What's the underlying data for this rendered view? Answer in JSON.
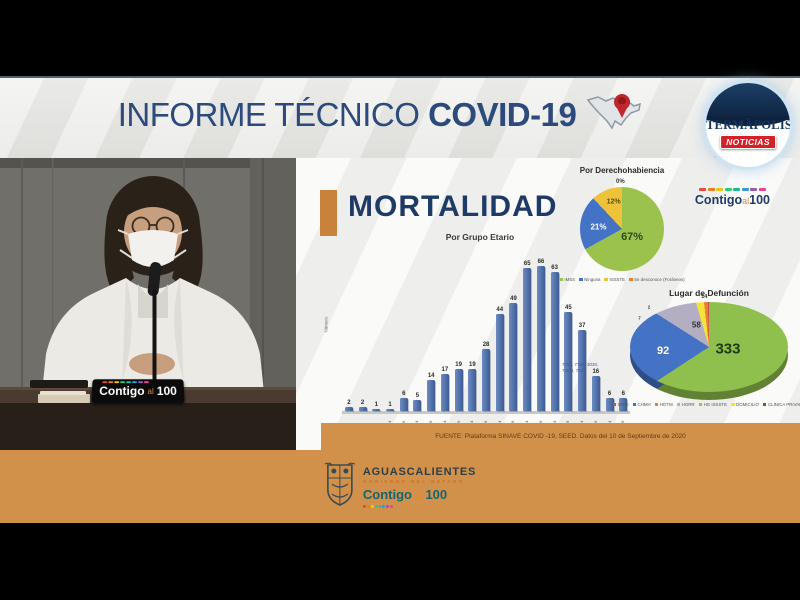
{
  "theme": {
    "accent_orange": "#d2914a",
    "navy": "#1e3a66",
    "bar_blue": "#4f6fa8",
    "badge_red": "#d42027"
  },
  "header": {
    "title_regular": "INFORME TÉCNICO ",
    "title_bold": "COVID-19"
  },
  "channel_logo": {
    "name": "TERMÀPOLIS",
    "badge": "NOTICIAS"
  },
  "photo": {
    "mic_plate": {
      "word1": "Contigo",
      "word2": "al",
      "word3": "100"
    }
  },
  "slide": {
    "title": "MORTALIDAD",
    "contigo_logo": {
      "word1": "Contigo",
      "word2": "al",
      "word3": "100"
    },
    "source": "FUENTE: Plataforma SINAVE COVID -19, SEED. Datos del 10 de Septiembre de 2020",
    "note_line1": "7762, 7763, 3030,",
    "note_line2": "7.633, 7213"
  },
  "footer": {
    "state": "AGUASCALIENTES",
    "line2": "GOBIERNO DEL ESTADO",
    "contigo": {
      "word1": "Contigo",
      "word2": "al",
      "word3": "100"
    }
  },
  "chart_data": [
    {
      "type": "bar",
      "title": "Por Grupo Etario",
      "ylabel": "Número",
      "categories": [
        "< 1",
        "1 a 4",
        "5 a 9",
        "10 a 14",
        "15 a 19",
        "20 a 24",
        "25 a 29",
        "30 a 34",
        "35 a 39",
        "40 a 44",
        "45 a 49",
        "50 a 54",
        "55 a 59",
        "60 a 64",
        "65 a 69",
        "70 a 74",
        "75 a 79",
        "80 a 84",
        "85 a 89",
        "90 a 94",
        "95 a 99"
      ],
      "values": [
        2,
        2,
        1,
        1,
        6,
        5,
        14,
        17,
        19,
        19,
        28,
        44,
        49,
        65,
        66,
        63,
        45,
        37,
        16,
        6,
        6
      ],
      "ylim": [
        0,
        70
      ],
      "bar_color": "#4f6fa8",
      "grid": false,
      "legend_position": "none"
    },
    {
      "type": "pie",
      "title": "Por Derechohabiencia",
      "labels": [
        "IMSS",
        "Ninguna",
        "ISSSTE",
        "Se desconoce (Foráneos)"
      ],
      "values_pct": [
        67,
        21,
        12,
        0
      ],
      "value_labels": [
        "67%",
        "21%",
        "12%",
        "0%"
      ],
      "colors": [
        "#9cc24e",
        "#4472c4",
        "#eec33a",
        "#ed7d31"
      ],
      "legend_position": "bottom"
    },
    {
      "type": "pie",
      "style3d": true,
      "title": "Lugar de Defunción",
      "labels": [
        "IMSS",
        "CHMH",
        "HGTM",
        "HGRR",
        "HG ISSSTE",
        "DOMICILIO",
        "CLINICA PRIVADA"
      ],
      "legend_colors": [
        "#c0504d",
        "#4472c4",
        "#ed7d31",
        "#b3aec2",
        "#9cc24e",
        "#f2e23a",
        "#3f7a28"
      ],
      "slices": [
        {
          "value": 333,
          "color": "#8fbf4d"
        },
        {
          "value": 92,
          "color": "#4472c4"
        },
        {
          "value": 58,
          "color": "#b3aec2"
        },
        {
          "value": 14,
          "color": "#f2e23a"
        },
        {
          "value": 7,
          "color": "#ed7d31"
        },
        {
          "value": 2,
          "color": "#c0504d"
        }
      ],
      "value_labels": [
        "333",
        "92",
        "58",
        "14",
        "7",
        "2"
      ],
      "legend_position": "bottom"
    }
  ]
}
